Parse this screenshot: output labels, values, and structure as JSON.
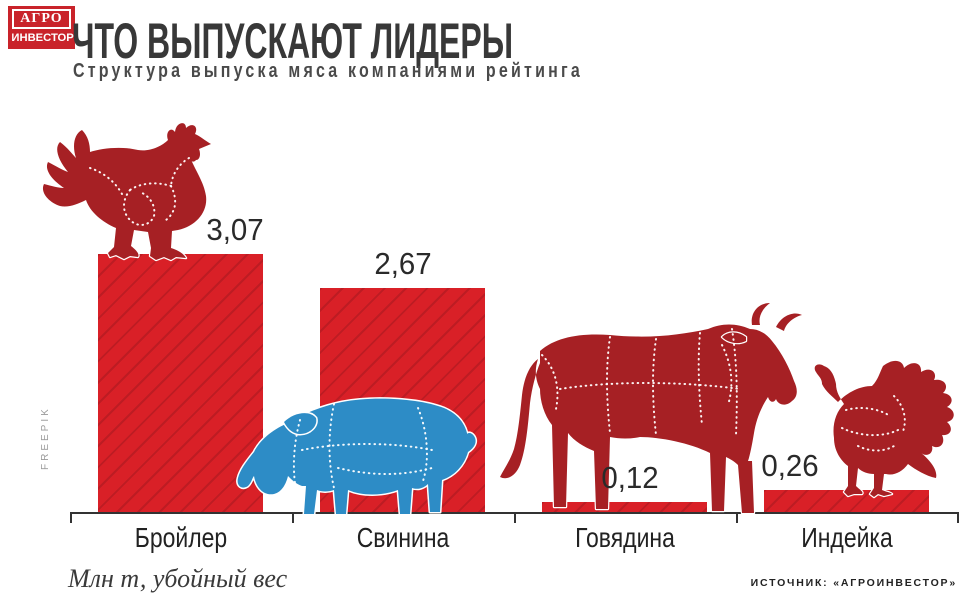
{
  "logo": {
    "line1": "АГРО",
    "line2": "ИНВЕСТОР"
  },
  "header": {
    "title": "ЧТО ВЫПУСКАЮТ ЛИДЕРЫ",
    "subtitle": "Структура выпуска мяса компаниями рейтинга"
  },
  "chart_data": {
    "type": "bar",
    "title": "ЧТО ВЫПУСКАЮТ ЛИДЕРЫ",
    "subtitle": "Структура выпуска мяса компаниями рейтинга",
    "categories": [
      "Бройлер",
      "Свинина",
      "Говядина",
      "Индейка"
    ],
    "values": [
      3.07,
      2.67,
      0.12,
      0.26
    ],
    "value_labels": [
      "3,07",
      "2,67",
      "0,12",
      "0,26"
    ],
    "unit": "Млн т, убойный вес",
    "ylim": [
      0,
      3.2
    ],
    "grid": false,
    "legend": false,
    "bar_icons": [
      "chicken",
      "pig",
      "cow",
      "turkey"
    ],
    "bar_color": "#d92027"
  },
  "footer": {
    "unit_note": "Млн т, убойный вес",
    "source": "ИСТОЧНИК: «АГРОИНВЕСТОР»"
  },
  "watermark": "FREEPIK",
  "colors": {
    "bar_red": "#d92027",
    "bar_hatch": "#bd1c23",
    "animal_red": "#a62024",
    "pig_blue": "#2d8cc6",
    "logo_red": "#c9232a",
    "text_dark": "#2e2e2e",
    "axis": "#333333",
    "muted": "#9b9b9b"
  }
}
